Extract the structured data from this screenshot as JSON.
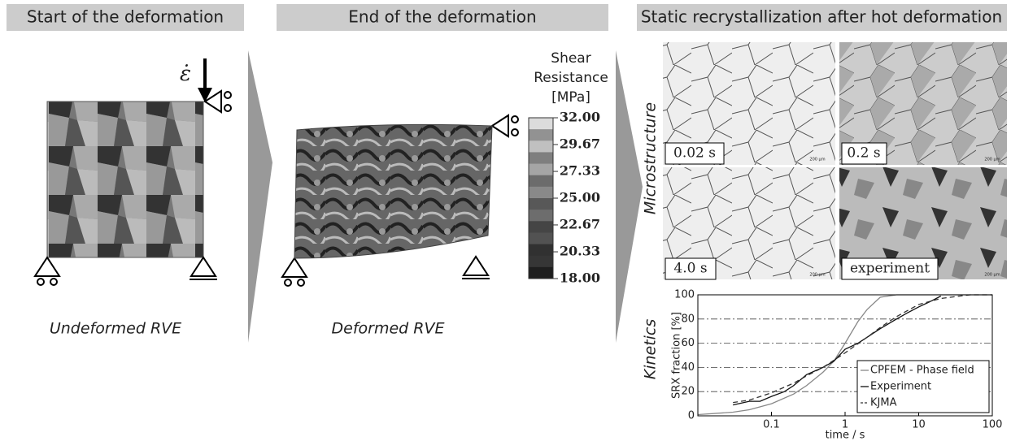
{
  "panels": {
    "start": {
      "title": "Start of the deformation",
      "caption": "Undeformed RVE"
    },
    "end": {
      "title": "End of the deformation",
      "caption": "Deformed RVE"
    },
    "srx": {
      "title": "Static recrystallization after hot deformation",
      "microstructure_label": "Microstructure",
      "kinetics_label": "Kinetics",
      "images": [
        "0.02 s",
        "0.2 s",
        "4.0 s",
        "experiment"
      ],
      "scale_bar": "200 µm"
    }
  },
  "strain_rate_symbol": "ε̇",
  "colorbar": {
    "title_lines": [
      "Shear",
      "Resistance",
      "[MPa]"
    ],
    "lim": [
      18,
      32
    ],
    "ticks": [
      {
        "value": 32,
        "label": "32.00"
      },
      {
        "value": 29.67,
        "label": "29.67"
      },
      {
        "value": 27.33,
        "label": "27.33"
      },
      {
        "value": 25,
        "label": "25.00"
      },
      {
        "value": 22.67,
        "label": "22.67"
      },
      {
        "value": 20.33,
        "label": "20.33"
      },
      {
        "value": 18,
        "label": "18.00"
      }
    ]
  },
  "chart_data": {
    "type": "line",
    "xlabel": "time / s",
    "ylabel": "SRX fraction [%]",
    "xscale": "log",
    "xlim": [
      0.01,
      100
    ],
    "xticks": [
      0.1,
      1,
      10,
      100
    ],
    "ylim": [
      0,
      100
    ],
    "yticks": [
      0,
      20,
      40,
      60,
      80,
      100
    ],
    "grid": true,
    "legend": "lower right",
    "series": [
      {
        "name": "CPFEM - Phase field",
        "color": "#888888",
        "dash": "solid",
        "x": [
          0.01,
          0.03,
          0.05,
          0.1,
          0.2,
          0.3,
          0.5,
          0.7,
          1,
          1.5,
          2,
          3,
          5,
          10,
          100
        ],
        "values": [
          1,
          3,
          5,
          10,
          18,
          25,
          36,
          45,
          60,
          78,
          88,
          98,
          100,
          100,
          100
        ]
      },
      {
        "name": "Experiment",
        "color": "#111111",
        "dash": "solid",
        "x": [
          0.03,
          0.05,
          0.07,
          0.1,
          0.15,
          0.2,
          0.3,
          0.5,
          0.7,
          1,
          1.5,
          2,
          3,
          5,
          7,
          10,
          15,
          20
        ],
        "values": [
          9,
          12,
          12,
          16,
          20,
          25,
          34,
          40,
          45,
          55,
          60,
          65,
          72,
          80,
          85,
          90,
          95,
          99
        ]
      },
      {
        "name": "KJMA",
        "color": "#333333",
        "dash": "dashed",
        "x": [
          0.03,
          0.05,
          0.1,
          0.2,
          0.3,
          0.5,
          1,
          2,
          3,
          5,
          10,
          20,
          50,
          100
        ],
        "values": [
          11,
          13,
          19,
          27,
          33,
          40,
          52,
          65,
          73,
          82,
          92,
          97,
          100,
          100
        ]
      }
    ]
  }
}
